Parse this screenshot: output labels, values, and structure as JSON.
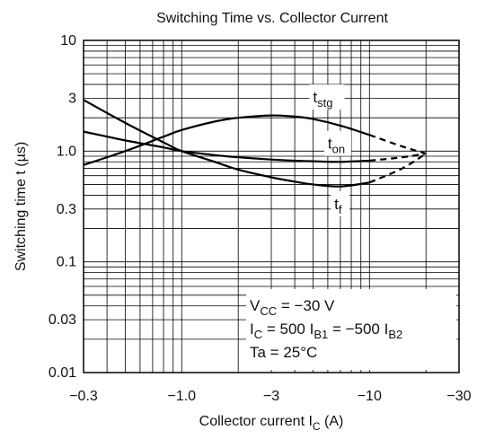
{
  "chart_data": {
    "type": "line",
    "title": "Switching Time vs. Collector Current",
    "xlabel": {
      "main": "Collector current  I",
      "sub": "C",
      "tail": "  (A)"
    },
    "ylabel": "Switching time  t  (µs)",
    "x_scale": "log",
    "y_scale": "log",
    "xlim": [
      -0.3,
      -30
    ],
    "ylim": [
      0.01,
      10
    ],
    "x_ticks": [
      {
        "value": -0.3,
        "label": "−0.3"
      },
      {
        "value": -1,
        "label": "−1.0"
      },
      {
        "value": -3,
        "label": "−3"
      },
      {
        "value": -10,
        "label": "−10"
      },
      {
        "value": -30,
        "label": "−30"
      }
    ],
    "y_ticks": [
      {
        "value": 10,
        "label": "10"
      },
      {
        "value": 3,
        "label": "3"
      },
      {
        "value": 1,
        "label": "1.0"
      },
      {
        "value": 0.3,
        "label": "0.3"
      },
      {
        "value": 0.1,
        "label": "0.1"
      },
      {
        "value": 0.03,
        "label": "0.03"
      },
      {
        "value": 0.01,
        "label": "0.01"
      }
    ],
    "grid": true,
    "series": [
      {
        "name": "tstg",
        "label_main": "t",
        "label_sub": "stg",
        "x": [
          -0.3,
          -0.5,
          -0.8,
          -1.0,
          -1.5,
          -2.0,
          -3.0,
          -4.0,
          -5.0,
          -7.0,
          -10.0,
          -15.0,
          -20.0
        ],
        "y": [
          0.75,
          1.0,
          1.35,
          1.55,
          1.85,
          2.0,
          2.1,
          2.05,
          1.95,
          1.7,
          1.4,
          1.1,
          0.95
        ],
        "dashed_from_x": -10.0
      },
      {
        "name": "ton",
        "label_main": "t",
        "label_sub": "on",
        "x": [
          -0.3,
          -0.5,
          -0.8,
          -1.0,
          -1.5,
          -2.0,
          -3.0,
          -4.0,
          -5.0,
          -7.0,
          -10.0,
          -15.0,
          -20.0
        ],
        "y": [
          1.5,
          1.25,
          1.08,
          1.0,
          0.92,
          0.88,
          0.84,
          0.82,
          0.81,
          0.8,
          0.82,
          0.88,
          0.95
        ],
        "dashed_from_x": -10.0
      },
      {
        "name": "tf",
        "label_main": "t",
        "label_sub": "f",
        "x": [
          -0.3,
          -0.5,
          -0.8,
          -1.0,
          -1.5,
          -2.0,
          -3.0,
          -4.0,
          -5.0,
          -7.0,
          -10.0,
          -15.0,
          -20.0
        ],
        "y": [
          2.9,
          1.8,
          1.2,
          1.0,
          0.8,
          0.68,
          0.58,
          0.53,
          0.5,
          0.48,
          0.52,
          0.7,
          0.95
        ],
        "dashed_from_x": -10.0
      }
    ],
    "conditions": [
      {
        "parts": [
          {
            "t": "V"
          },
          {
            "t": "CC",
            "sub": true
          },
          {
            "t": " = −30 V"
          }
        ]
      },
      {
        "parts": [
          {
            "t": "I"
          },
          {
            "t": "C",
            "sub": true
          },
          {
            "t": " = 500 I"
          },
          {
            "t": "B1",
            "sub": true
          },
          {
            "t": " = −500 I"
          },
          {
            "t": "B2",
            "sub": true
          }
        ]
      },
      {
        "parts": [
          {
            "t": "Ta = 25°C"
          }
        ]
      }
    ]
  }
}
